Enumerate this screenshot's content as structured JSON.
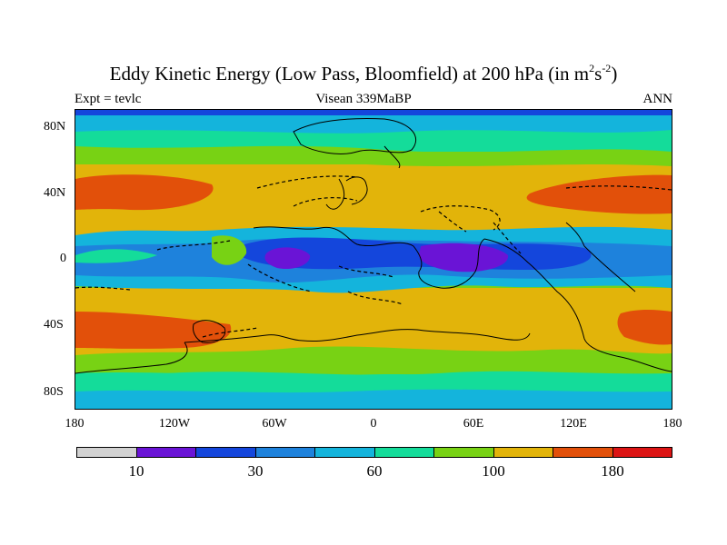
{
  "title": {
    "main": "Eddy Kinetic Energy (Low Pass, Bloomfield) at 200 hPa (in m",
    "sup1": "2",
    "mid": "s",
    "sup2": "-2",
    "end": ")"
  },
  "subtitle": {
    "left": "Expt = tevlc",
    "center": "Visean 339MaBP",
    "right": "ANN"
  },
  "axes": {
    "y_ticks": [
      "80N",
      "40N",
      "0",
      "40S",
      "80S"
    ],
    "x_ticks": [
      "180",
      "120W",
      "60W",
      "0",
      "60E",
      "120E",
      "180"
    ]
  },
  "colorbar": {
    "colors": [
      "#d2d2d2",
      "#6a14d6",
      "#1446dc",
      "#1e82dc",
      "#14b4dc",
      "#14dc9a",
      "#78d214",
      "#e2b40a",
      "#e2500a",
      "#dc1414"
    ],
    "labels": [
      "10",
      "30",
      "60",
      "100",
      "180"
    ]
  }
}
